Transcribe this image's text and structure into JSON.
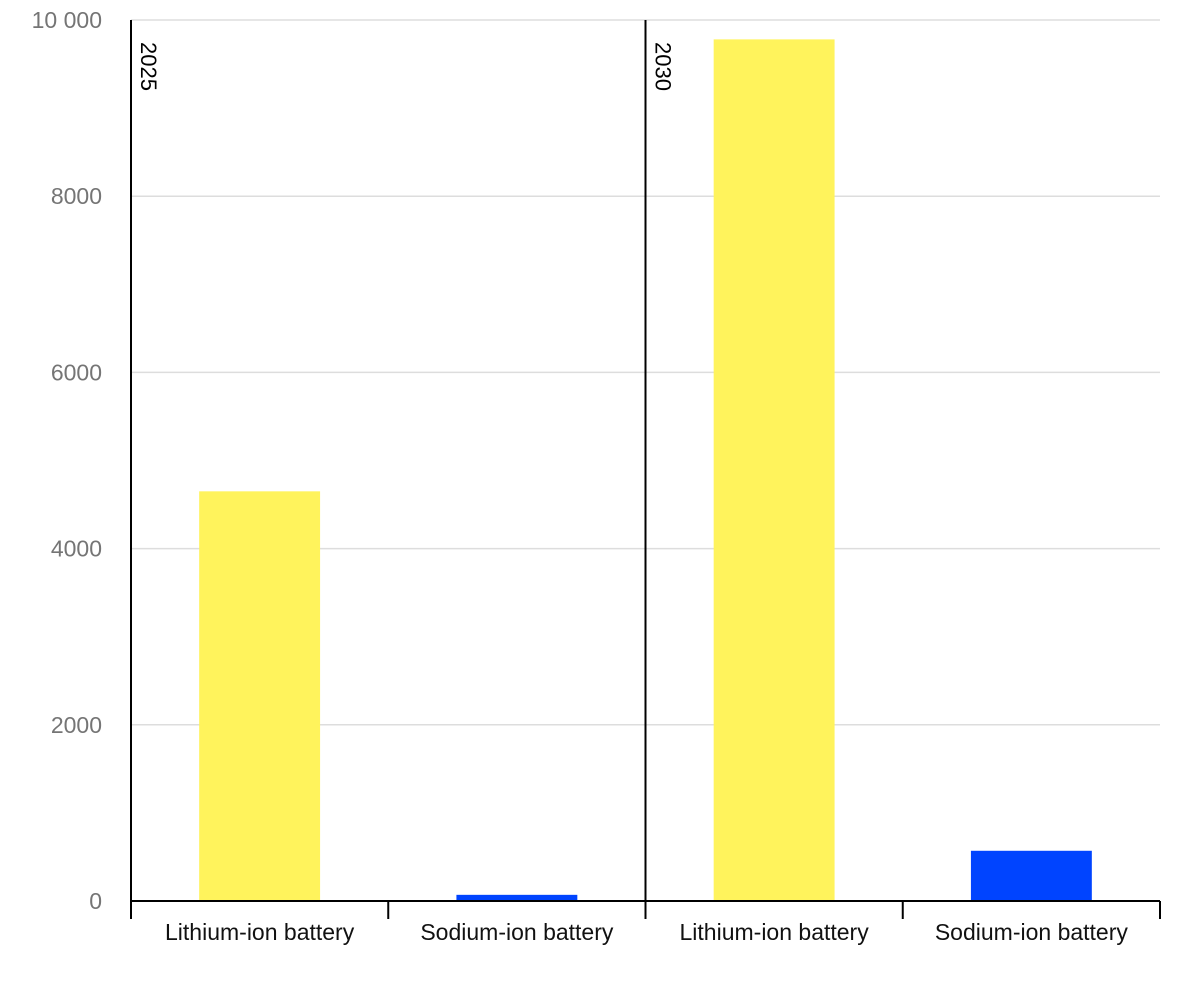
{
  "chart_data": {
    "type": "bar",
    "groups": [
      "2025",
      "2030"
    ],
    "categories": [
      "Lithium-ion battery",
      "Sodium-ion battery"
    ],
    "series": [
      {
        "group": "2025",
        "values": [
          4650,
          70
        ]
      },
      {
        "group": "2030",
        "values": [
          9780,
          570
        ]
      }
    ],
    "colors": {
      "Lithium-ion battery": "#fff35c",
      "Sodium-ion battery": "#0044ff"
    },
    "ylim": [
      0,
      10000
    ],
    "yticks": [
      0,
      2000,
      4000,
      6000,
      8000,
      10000
    ],
    "ytick_labels": [
      "0",
      "2000",
      "4000",
      "6000",
      "8000",
      "10 000"
    ],
    "grid": true,
    "title": "",
    "xlabel": "",
    "ylabel": ""
  }
}
